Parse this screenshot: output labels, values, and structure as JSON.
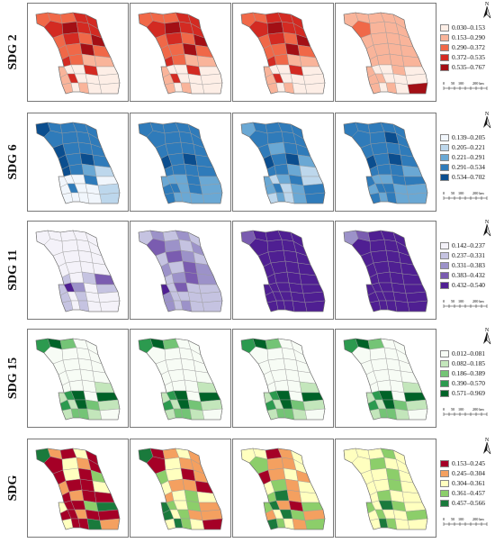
{
  "rows": [
    {
      "label": "SDG 2",
      "legend": [
        "0.030–0.153",
        "0.153–0.290",
        "0.290–0.372",
        "0.372–0.535",
        "0.535–0.767"
      ],
      "colors": [
        "#fdeee6",
        "#f9b49a",
        "#f06848",
        "#d32a22",
        "#a30f15"
      ],
      "panels": [
        {
          "pattern": [
            2,
            2,
            2,
            3,
            3,
            3,
            4,
            3,
            3,
            2,
            3,
            2,
            4,
            2,
            2,
            4,
            2,
            3,
            2,
            1,
            1,
            1,
            0,
            0,
            3,
            0,
            1,
            3,
            0,
            0,
            0,
            1,
            0,
            1,
            0,
            0
          ]
        },
        {
          "pattern": [
            2,
            2,
            2,
            3,
            3,
            3,
            4,
            3,
            3,
            2,
            3,
            2,
            4,
            2,
            2,
            4,
            2,
            3,
            2,
            1,
            1,
            1,
            0,
            0,
            3,
            0,
            1,
            3,
            0,
            0,
            0,
            1,
            0,
            1,
            0,
            0
          ]
        },
        {
          "pattern": [
            2,
            2,
            3,
            3,
            3,
            3,
            4,
            3,
            3,
            2,
            3,
            2,
            4,
            2,
            2,
            4,
            2,
            3,
            2,
            1,
            1,
            1,
            0,
            0,
            3,
            0,
            1,
            3,
            0,
            0,
            0,
            1,
            0,
            1,
            0,
            0
          ]
        },
        {
          "pattern": [
            1,
            1,
            1,
            1,
            1,
            2,
            1,
            1,
            1,
            1,
            1,
            1,
            1,
            1,
            1,
            1,
            1,
            1,
            1,
            1,
            1,
            1,
            0,
            0,
            1,
            0,
            1,
            1,
            0,
            0,
            0,
            1,
            0,
            1,
            0,
            4
          ]
        }
      ]
    },
    {
      "label": "SDG 6",
      "legend": [
        "0.139–0.205",
        "0.205–0.221",
        "0.221–0.291",
        "0.291–0.534",
        "0.534–0.702"
      ],
      "colors": [
        "#f1f6fc",
        "#bdd7ec",
        "#6aa8d4",
        "#2f7bba",
        "#0b4e8f"
      ],
      "panels": [
        {
          "pattern": [
            4,
            3,
            3,
            3,
            3,
            3,
            3,
            3,
            3,
            4,
            3,
            3,
            3,
            4,
            3,
            4,
            3,
            4,
            3,
            2,
            1,
            0,
            0,
            0,
            3,
            0,
            0,
            3,
            0,
            0,
            1,
            0,
            0,
            0,
            0,
            1
          ]
        },
        {
          "pattern": [
            3,
            3,
            3,
            3,
            3,
            3,
            3,
            3,
            3,
            3,
            3,
            3,
            3,
            4,
            3,
            4,
            3,
            3,
            3,
            3,
            3,
            2,
            2,
            2,
            3,
            2,
            3,
            3,
            2,
            3,
            2,
            3,
            2,
            2,
            2,
            2
          ]
        },
        {
          "pattern": [
            2,
            3,
            3,
            3,
            3,
            3,
            3,
            3,
            3,
            3,
            2,
            3,
            3,
            4,
            3,
            4,
            2,
            3,
            3,
            2,
            1,
            2,
            1,
            2,
            3,
            1,
            2,
            3,
            1,
            2,
            3,
            1,
            2,
            1,
            2,
            3
          ]
        },
        {
          "pattern": [
            3,
            3,
            3,
            3,
            3,
            3,
            3,
            4,
            3,
            3,
            3,
            3,
            3,
            4,
            3,
            4,
            3,
            3,
            3,
            3,
            2,
            3,
            2,
            2,
            3,
            3,
            2,
            3,
            3,
            2,
            2,
            3,
            2,
            3,
            2,
            2
          ]
        }
      ]
    },
    {
      "label": "SDG 11",
      "legend": [
        "0.142–0.237",
        "0.237–0.331",
        "0.331–0.383",
        "0.383–0.432",
        "0.432–0.540"
      ],
      "colors": [
        "#f4f2f9",
        "#c5c3e1",
        "#9c92c9",
        "#7a5cb0",
        "#4f1f92"
      ],
      "panels": [
        {
          "pattern": [
            0,
            0,
            0,
            0,
            0,
            0,
            0,
            0,
            0,
            0,
            0,
            0,
            0,
            0,
            0,
            0,
            0,
            1,
            0,
            1,
            3,
            1,
            4,
            2,
            0,
            1,
            1,
            0,
            1,
            0,
            0,
            1,
            0,
            1,
            0,
            0
          ]
        },
        {
          "pattern": [
            1,
            2,
            1,
            2,
            1,
            3,
            2,
            1,
            2,
            1,
            3,
            2,
            1,
            2,
            1,
            3,
            2,
            1,
            2,
            3,
            2,
            4,
            1,
            3,
            1,
            1,
            2,
            1,
            1,
            1,
            1,
            2,
            1,
            2,
            1,
            1
          ]
        },
        {
          "pattern": [
            3,
            4,
            4,
            4,
            4,
            4,
            4,
            4,
            4,
            4,
            4,
            4,
            4,
            4,
            4,
            4,
            4,
            4,
            4,
            4,
            4,
            4,
            4,
            4,
            4,
            4,
            4,
            4,
            4,
            4,
            4,
            4,
            4,
            4,
            4,
            4
          ]
        },
        {
          "pattern": [
            2,
            3,
            4,
            4,
            4,
            4,
            4,
            4,
            4,
            4,
            4,
            4,
            4,
            4,
            4,
            4,
            4,
            4,
            4,
            4,
            4,
            4,
            4,
            4,
            4,
            4,
            4,
            4,
            4,
            4,
            4,
            4,
            4,
            4,
            4,
            4
          ]
        }
      ]
    },
    {
      "label": "SDG 15",
      "legend": [
        "0.012–0.081",
        "0.082–0.185",
        "0.186–0.389",
        "0.390–0.570",
        "0.571–0.969"
      ],
      "colors": [
        "#f7fcf5",
        "#c3e6bb",
        "#74c476",
        "#2c9a4f",
        "#006328"
      ],
      "panels": [
        {
          "pattern": [
            3,
            4,
            2,
            0,
            0,
            0,
            0,
            0,
            0,
            0,
            0,
            0,
            0,
            0,
            0,
            0,
            0,
            0,
            0,
            0,
            1,
            1,
            3,
            4,
            0,
            4,
            3,
            1,
            4,
            2,
            1,
            1,
            2,
            2,
            1,
            0
          ]
        },
        {
          "pattern": [
            3,
            4,
            2,
            0,
            0,
            0,
            0,
            0,
            0,
            0,
            0,
            0,
            0,
            0,
            0,
            0,
            0,
            0,
            0,
            0,
            1,
            1,
            3,
            4,
            0,
            4,
            3,
            1,
            4,
            2,
            1,
            1,
            2,
            2,
            1,
            0
          ]
        },
        {
          "pattern": [
            3,
            4,
            2,
            0,
            0,
            0,
            0,
            0,
            0,
            0,
            0,
            0,
            0,
            0,
            0,
            0,
            0,
            0,
            0,
            0,
            1,
            1,
            3,
            4,
            0,
            4,
            3,
            1,
            4,
            2,
            1,
            1,
            2,
            2,
            1,
            0
          ]
        },
        {
          "pattern": [
            3,
            4,
            2,
            0,
            0,
            0,
            0,
            0,
            0,
            0,
            0,
            0,
            0,
            0,
            0,
            0,
            0,
            0,
            0,
            0,
            1,
            1,
            3,
            4,
            0,
            4,
            3,
            1,
            4,
            2,
            1,
            1,
            2,
            2,
            1,
            0
          ]
        }
      ]
    },
    {
      "label": "SDG",
      "legend": [
        "0.153–0.245",
        "0.245–0.304",
        "0.304–0.361",
        "0.361–0.457",
        "0.457–0.566"
      ],
      "colors": [
        "#a50026",
        "#f4a060",
        "#ffffbf",
        "#8cce6a",
        "#1a7a3c"
      ],
      "panels": [
        {
          "pattern": [
            4,
            1,
            0,
            2,
            0,
            0,
            2,
            1,
            0,
            0,
            2,
            0,
            3,
            1,
            0,
            0,
            2,
            0,
            1,
            0,
            0,
            2,
            0,
            0,
            3,
            4,
            0,
            0,
            1,
            0,
            0,
            2,
            0,
            0,
            4,
            1
          ]
        },
        {
          "pattern": [
            4,
            0,
            1,
            2,
            1,
            0,
            2,
            1,
            1,
            3,
            2,
            0,
            1,
            2,
            1,
            1,
            0,
            1,
            2,
            3,
            2,
            4,
            3,
            2,
            3,
            1,
            4,
            2,
            3,
            1,
            1,
            2,
            4,
            3,
            2,
            0
          ]
        },
        {
          "pattern": [
            2,
            2,
            0,
            1,
            2,
            3,
            1,
            1,
            2,
            0,
            1,
            2,
            1,
            2,
            3,
            1,
            2,
            3,
            4,
            1,
            2,
            3,
            4,
            1,
            0,
            3,
            1,
            2,
            4,
            3,
            1,
            4,
            3,
            2,
            1,
            3
          ]
        },
        {
          "pattern": [
            2,
            2,
            2,
            3,
            2,
            2,
            3,
            2,
            2,
            2,
            2,
            3,
            2,
            2,
            2,
            3,
            2,
            2,
            3,
            2,
            2,
            3,
            2,
            4,
            3,
            2,
            2,
            3,
            2,
            2,
            3,
            2,
            4,
            3,
            2,
            2
          ]
        }
      ]
    }
  ],
  "scale": {
    "ticks": [
      "0",
      "50",
      "100",
      "200 km"
    ]
  },
  "north_symbol": "N"
}
